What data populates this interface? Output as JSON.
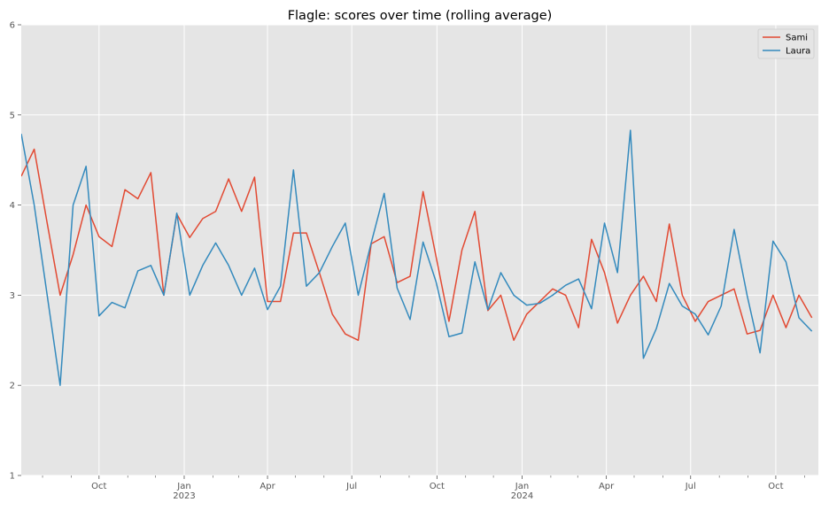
{
  "chart_data": {
    "type": "line",
    "title": "Flagle: scores over time (rolling average)",
    "xlabel": "",
    "ylabel": "",
    "ylim": [
      1,
      6
    ],
    "xlim": [
      "2022-07-09",
      "2024-11-16"
    ],
    "yticks": [
      "1",
      "2",
      "3",
      "4",
      "5",
      "6"
    ],
    "xticks": [
      {
        "date": "2022-10-01",
        "label": "Oct",
        "year": ""
      },
      {
        "date": "2023-01-01",
        "label": "Jan",
        "year": "2023"
      },
      {
        "date": "2023-04-01",
        "label": "Apr",
        "year": ""
      },
      {
        "date": "2023-07-01",
        "label": "Jul",
        "year": ""
      },
      {
        "date": "2023-10-01",
        "label": "Oct",
        "year": ""
      },
      {
        "date": "2024-01-01",
        "label": "Jan",
        "year": "2024"
      },
      {
        "date": "2024-04-01",
        "label": "Apr",
        "year": ""
      },
      {
        "date": "2024-07-01",
        "label": "Jul",
        "year": ""
      },
      {
        "date": "2024-10-01",
        "label": "Oct",
        "year": ""
      }
    ],
    "minor_xticks": [
      "2022-08-01",
      "2022-09-01",
      "2022-11-01",
      "2022-12-01",
      "2023-02-01",
      "2023-03-01",
      "2023-05-01",
      "2023-06-01",
      "2023-08-01",
      "2023-09-01",
      "2023-11-01",
      "2023-12-01",
      "2024-02-01",
      "2024-03-01",
      "2024-05-01",
      "2024-06-01",
      "2024-08-01",
      "2024-09-01",
      "2024-11-01"
    ],
    "grid": true,
    "legend_position": "top-right",
    "x": [
      "2022-07-09",
      "2022-07-23",
      "2022-08-06",
      "2022-08-20",
      "2022-09-03",
      "2022-09-17",
      "2022-10-01",
      "2022-10-15",
      "2022-10-29",
      "2022-11-12",
      "2022-11-26",
      "2022-12-10",
      "2022-12-24",
      "2023-01-07",
      "2023-01-21",
      "2023-02-04",
      "2023-02-18",
      "2023-03-04",
      "2023-03-18",
      "2023-04-01",
      "2023-04-15",
      "2023-04-29",
      "2023-05-13",
      "2023-05-27",
      "2023-06-10",
      "2023-06-24",
      "2023-07-08",
      "2023-07-22",
      "2023-08-05",
      "2023-08-19",
      "2023-09-02",
      "2023-09-16",
      "2023-09-30",
      "2023-10-14",
      "2023-10-28",
      "2023-11-11",
      "2023-11-25",
      "2023-12-09",
      "2023-12-23",
      "2024-01-06",
      "2024-01-20",
      "2024-02-03",
      "2024-02-17",
      "2024-03-02",
      "2024-03-16",
      "2024-03-30",
      "2024-04-13",
      "2024-04-27",
      "2024-05-11",
      "2024-05-25",
      "2024-06-08",
      "2024-06-22",
      "2024-07-06",
      "2024-07-20",
      "2024-08-03",
      "2024-08-17",
      "2024-08-31",
      "2024-09-14",
      "2024-09-28",
      "2024-10-12",
      "2024-10-26",
      "2024-11-09"
    ],
    "series": [
      {
        "name": "Sami",
        "color": "#e24a33",
        "values": [
          4.32,
          4.62,
          3.8,
          3.0,
          3.45,
          4.0,
          3.65,
          3.54,
          4.17,
          4.07,
          4.36,
          3.0,
          3.9,
          3.64,
          3.85,
          3.93,
          4.29,
          3.93,
          4.31,
          2.93,
          2.93,
          3.69,
          3.69,
          3.25,
          2.79,
          2.57,
          2.5,
          3.57,
          3.65,
          3.14,
          3.21,
          4.15,
          3.43,
          2.71,
          3.5,
          3.93,
          2.83,
          3.0,
          2.5,
          2.79,
          2.93,
          3.07,
          3.0,
          2.64,
          3.62,
          3.25,
          2.69,
          3.0,
          3.21,
          2.93,
          3.79,
          3.0,
          2.71,
          2.93,
          3.0,
          3.07,
          2.57,
          2.61,
          3.0,
          2.64,
          3.0,
          2.75
        ]
      },
      {
        "name": "Laura",
        "color": "#348abd",
        "values": [
          4.79,
          4.0,
          3.0,
          2.0,
          4.0,
          4.43,
          2.77,
          2.92,
          2.86,
          3.27,
          3.33,
          3.0,
          3.91,
          3.0,
          3.33,
          3.58,
          3.33,
          3.0,
          3.3,
          2.84,
          3.1,
          4.39,
          3.1,
          3.25,
          3.54,
          3.8,
          3.0,
          3.58,
          4.13,
          3.08,
          2.73,
          3.59,
          3.15,
          2.54,
          2.58,
          3.37,
          2.84,
          3.25,
          3.0,
          2.89,
          2.91,
          3.0,
          3.11,
          3.18,
          2.85,
          3.8,
          3.25,
          4.83,
          2.3,
          2.63,
          3.13,
          2.88,
          2.79,
          2.56,
          2.88,
          3.73,
          3.0,
          2.36,
          3.6,
          3.37,
          2.75,
          2.6
        ]
      }
    ]
  }
}
